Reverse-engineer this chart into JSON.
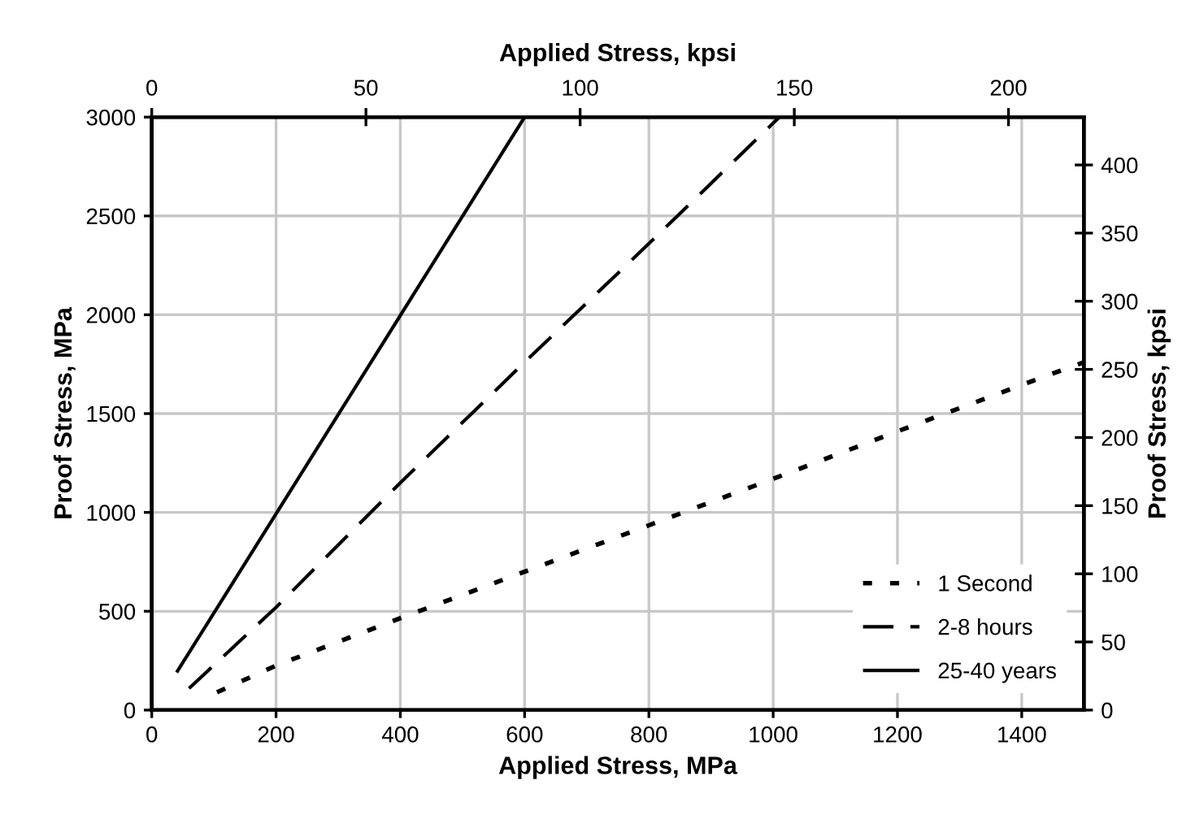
{
  "chart_data": {
    "type": "line",
    "xlabel": "Applied Stress, MPa",
    "ylabel": "Proof Stress, MPa",
    "x2label": "Applied Stress, kpsi",
    "y2label": "Proof Stress, kpsi",
    "xlim": [
      0,
      1500
    ],
    "xticks": [
      0,
      200,
      400,
      600,
      800,
      1000,
      1200,
      1400
    ],
    "ylim": [
      0,
      3000
    ],
    "yticks": [
      0,
      500,
      1000,
      1500,
      2000,
      2500,
      3000
    ],
    "x2lim": [
      0,
      217.6
    ],
    "x2ticks": [
      0,
      50,
      100,
      150,
      200
    ],
    "y2lim": [
      0,
      435.1
    ],
    "y2ticks": [
      0,
      50,
      100,
      150,
      200,
      250,
      300,
      350,
      400
    ],
    "grid": true,
    "legend": "bottom right",
    "series": [
      {
        "name": "1 Second",
        "color": "#000000",
        "line_style": "dotted",
        "x": [
          105,
          200,
          400,
          600,
          800,
          1000,
          1200,
          1400,
          1500
        ],
        "values": [
          90,
          225,
          465,
          700,
          935,
          1170,
          1410,
          1645,
          1760
        ]
      },
      {
        "name": "2-8 hours",
        "color": "#000000",
        "line_style": "dashed",
        "x": [
          60,
          200,
          400,
          600,
          800,
          1010
        ],
        "values": [
          110,
          520,
          1150,
          1760,
          2360,
          3000
        ]
      },
      {
        "name": "25-40 years",
        "color": "#000000",
        "line_style": "solid",
        "x": [
          40,
          600
        ],
        "values": [
          190,
          3000
        ]
      }
    ]
  }
}
